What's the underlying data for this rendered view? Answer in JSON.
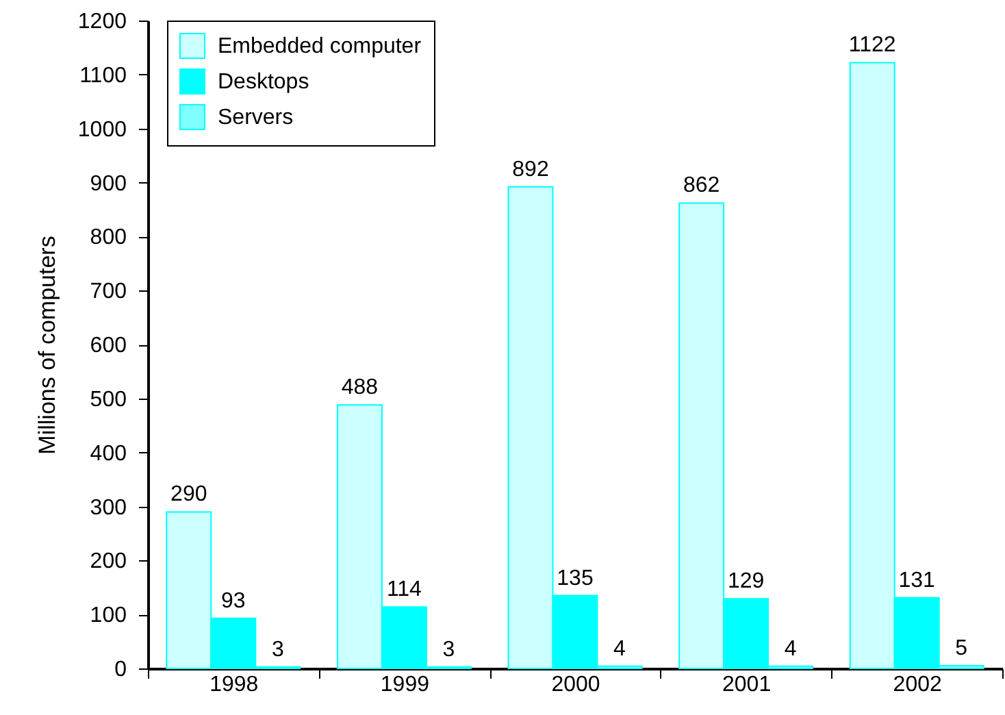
{
  "chart_data": {
    "type": "bar",
    "ylabel": "Millions of computers",
    "categories": [
      "1998",
      "1999",
      "2000",
      "2001",
      "2002"
    ],
    "series": [
      {
        "name": "Embedded computer",
        "color": "#ccffff",
        "values": [
          290,
          488,
          892,
          862,
          1122
        ]
      },
      {
        "name": "Desktops",
        "color": "#00ffff",
        "values": [
          93,
          114,
          135,
          129,
          131
        ]
      },
      {
        "name": "Servers",
        "color": "#80ffff",
        "values": [
          3,
          3,
          4,
          4,
          5
        ]
      }
    ],
    "ylim": [
      0,
      1200
    ],
    "yticks": [
      0,
      100,
      200,
      300,
      400,
      500,
      600,
      700,
      800,
      900,
      1000,
      1100,
      1200
    ],
    "legend": "top left",
    "data_labels": true
  }
}
